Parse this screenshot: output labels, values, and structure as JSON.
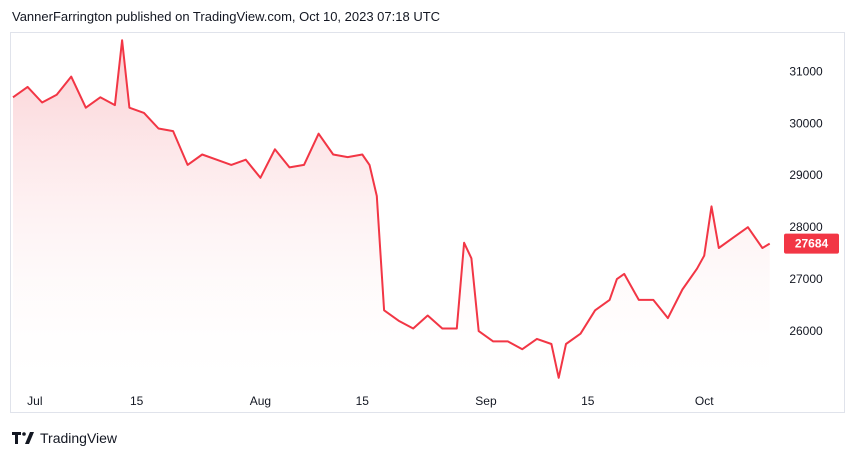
{
  "header": {
    "publisher_line": "VannerFarrington published on TradingView.com, Oct 10, 2023 07:18 UTC"
  },
  "footer": {
    "brand": "TradingView",
    "logo_icon": "tradingview-logo-icon"
  },
  "colors": {
    "line": "#f23645",
    "fill_top": "#f7a6ad",
    "fill_bottom": "#ffffff",
    "price_badge_bg": "#f23645",
    "price_badge_text": "#ffffff",
    "axis_text": "#131722",
    "border": "#e0e3eb"
  },
  "chart_data": {
    "type": "area",
    "x": [
      "2023-06-28",
      "2023-06-30",
      "2023-07-02",
      "2023-07-04",
      "2023-07-06",
      "2023-07-08",
      "2023-07-10",
      "2023-07-12",
      "2023-07-13",
      "2023-07-14",
      "2023-07-16",
      "2023-07-18",
      "2023-07-20",
      "2023-07-22",
      "2023-07-24",
      "2023-07-26",
      "2023-07-28",
      "2023-07-30",
      "2023-08-01",
      "2023-08-03",
      "2023-08-05",
      "2023-08-07",
      "2023-08-09",
      "2023-08-11",
      "2023-08-13",
      "2023-08-15",
      "2023-08-16",
      "2023-08-17",
      "2023-08-18",
      "2023-08-20",
      "2023-08-22",
      "2023-08-24",
      "2023-08-26",
      "2023-08-28",
      "2023-08-29",
      "2023-08-30",
      "2023-08-31",
      "2023-09-02",
      "2023-09-04",
      "2023-09-06",
      "2023-09-08",
      "2023-09-10",
      "2023-09-11",
      "2023-09-12",
      "2023-09-14",
      "2023-09-16",
      "2023-09-18",
      "2023-09-19",
      "2023-09-20",
      "2023-09-22",
      "2023-09-24",
      "2023-09-26",
      "2023-09-28",
      "2023-09-30",
      "2023-10-01",
      "2023-10-02",
      "2023-10-03",
      "2023-10-05",
      "2023-10-07",
      "2023-10-09",
      "2023-10-10"
    ],
    "y": [
      30500,
      30700,
      30400,
      30550,
      30900,
      30300,
      30500,
      30350,
      31600,
      30300,
      30200,
      29900,
      29850,
      29200,
      29400,
      29300,
      29200,
      29300,
      28950,
      29500,
      29150,
      29200,
      29800,
      29400,
      29350,
      29400,
      29200,
      28600,
      26400,
      26200,
      26050,
      26300,
      26050,
      26050,
      27700,
      27400,
      26000,
      25800,
      25800,
      25650,
      25850,
      25750,
      25100,
      25750,
      25950,
      26400,
      26600,
      27000,
      27100,
      26600,
      26600,
      26250,
      26800,
      27200,
      27450,
      28400,
      27600,
      27800,
      28000,
      27600,
      27684
    ],
    "x_ticks": [
      {
        "label": "Jul",
        "date": "2023-07-01"
      },
      {
        "label": "15",
        "date": "2023-07-15"
      },
      {
        "label": "Aug",
        "date": "2023-08-01"
      },
      {
        "label": "15",
        "date": "2023-08-15"
      },
      {
        "label": "Sep",
        "date": "2023-09-01"
      },
      {
        "label": "15",
        "date": "2023-09-15"
      },
      {
        "label": "Oct",
        "date": "2023-10-01"
      }
    ],
    "y_ticks": [
      26000,
      27000,
      28000,
      29000,
      30000,
      31000
    ],
    "y_tick_labels": [
      "26000",
      "27000",
      "28000",
      "29000",
      "30000",
      "31000"
    ],
    "ylim": [
      25000,
      31700
    ],
    "xlim": [
      "2023-06-28",
      "2023-10-11"
    ],
    "last_price": 27684,
    "last_price_label": "27684",
    "grid": false,
    "title": "",
    "xlabel": "",
    "ylabel": ""
  }
}
